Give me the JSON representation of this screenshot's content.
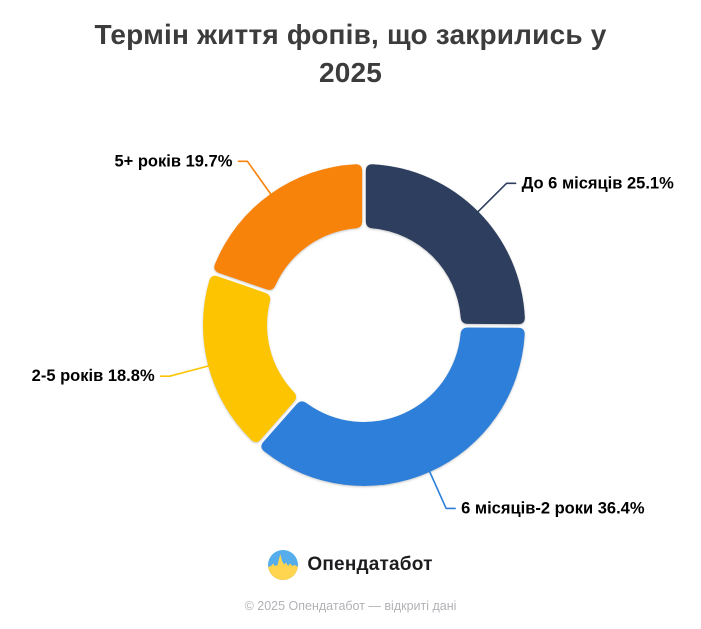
{
  "title": {
    "lines": [
      "Термін життя фопів, що закрились у",
      "2025"
    ],
    "full": "Термін життя фопів, що закрились у 2025"
  },
  "chart_data": {
    "type": "pie",
    "subtype": "donut",
    "title": "Термін життя фопів, що закрились у 2025",
    "unit": "%",
    "direction": "clockwise",
    "start_angle_deg": 0,
    "inner_radius_ratio": 0.6,
    "labels_format": "{label} {value}%",
    "segments": [
      {
        "label": "До 6 місяців",
        "value": 25.1,
        "color": "#2d3e5e"
      },
      {
        "label": "6 місяців-2 роки",
        "value": 36.4,
        "color": "#2e7fd9"
      },
      {
        "label": "2-5 років",
        "value": 18.8,
        "color": "#fdc402"
      },
      {
        "label": "5+ років",
        "value": 19.7,
        "color": "#f8830a"
      }
    ]
  },
  "logo": {
    "text": "Опендатабот",
    "flag_blue": "#55aeeb",
    "flag_yellow": "#ffd44f"
  },
  "footer": {
    "text": "© 2025 Опендатабот — відкриті дані"
  }
}
